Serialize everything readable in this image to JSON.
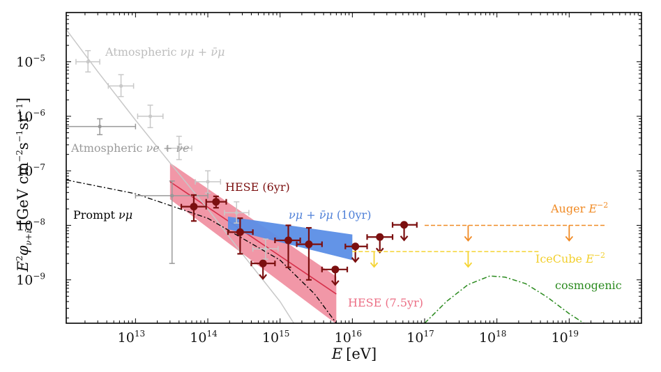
{
  "chart_data": {
    "type": "scatter",
    "x_scale": "log",
    "y_scale": "log",
    "xlim": [
      1100000000000.0,
      1e+20
    ],
    "ylim": [
      1.6e-10,
      8e-05
    ],
    "xlabel": {
      "var": "E",
      "unit": "[eV]"
    },
    "ylabel": {
      "main": "E",
      "sup": "2",
      "phi": "φ",
      "sub": "ν+ν̄",
      "unit": "[GeV cm",
      "e1": "−2",
      "s": "s",
      "e2": "−1",
      "sr": "sr",
      "e3": "−1",
      "close": "]"
    },
    "x_ticks": [
      {
        "value": 10000000000000.0,
        "base": "10",
        "exp": "13"
      },
      {
        "value": 100000000000000.0,
        "base": "10",
        "exp": "14"
      },
      {
        "value": 1000000000000000.0,
        "base": "10",
        "exp": "15"
      },
      {
        "value": 1e+16,
        "base": "10",
        "exp": "16"
      },
      {
        "value": 1e+17,
        "base": "10",
        "exp": "17"
      },
      {
        "value": 1e+18,
        "base": "10",
        "exp": "18"
      },
      {
        "value": 1e+19,
        "base": "10",
        "exp": "19"
      }
    ],
    "y_ticks": [
      {
        "value": 1e-09,
        "base": "10",
        "exp": "−9"
      },
      {
        "value": 1e-08,
        "base": "10",
        "exp": "−8"
      },
      {
        "value": 1e-07,
        "base": "10",
        "exp": "−7"
      },
      {
        "value": 1e-06,
        "base": "10",
        "exp": "−6"
      },
      {
        "value": 1e-05,
        "base": "10",
        "exp": "−5"
      }
    ],
    "colors": {
      "atm_mu": "#c8c8c8",
      "atm_e": "#999999",
      "hese6": "#7b0f0f",
      "hese75": "#ec6f85",
      "hese75_line": "#d6304a",
      "numu": "#5b8ee6",
      "prompt": "#000000",
      "auger": "#f08a24",
      "icecube": "#f5d432",
      "cosmogenic": "#2a8a1e"
    },
    "labels": {
      "atm_mu": {
        "text": "Atmospheric ",
        "math": "νμ + ν̄μ"
      },
      "atm_e": {
        "text": "Atmospheric ",
        "math": "νe + ν̄e"
      },
      "hese6": "HESE (6yr)",
      "numu": {
        "math": "νμ + ν̄μ",
        "text": " (10yr)"
      },
      "prompt": {
        "text": "Prompt ",
        "math": "νμ"
      },
      "auger": {
        "text": "Auger ",
        "math": "E",
        "exp": "−2"
      },
      "icecube": {
        "text": "IceCube ",
        "math": "E",
        "exp": "−2"
      },
      "cosmogenic": "cosmogenic",
      "hese75": "HESE (7.5yr)"
    },
    "series": [
      {
        "name": "Atmospheric νμ + ν̄μ (points)",
        "points": [
          {
            "x": 2200000000000.0,
            "y": 1e-05,
            "xlo": 1500000000000.0,
            "xhi": 3200000000000.0,
            "ylo": 6.5e-06,
            "yhi": 1.6e-05
          },
          {
            "x": 6300000000000.0,
            "y": 3.6e-06,
            "xlo": 4200000000000.0,
            "xhi": 9400000000000.0,
            "ylo": 2.3e-06,
            "yhi": 5.8e-06
          },
          {
            "x": 16000000000000.0,
            "y": 1e-06,
            "xlo": 10700000000000.0,
            "xhi": 24000000000000.0,
            "ylo": 6.2e-07,
            "yhi": 1.6e-06
          },
          {
            "x": 40000000000000.0,
            "y": 2.6e-07,
            "xlo": 27000000000000.0,
            "xhi": 60000000000000.0,
            "ylo": 1.6e-07,
            "yhi": 4.3e-07
          },
          {
            "x": 100000000000000.0,
            "y": 6.3e-08,
            "xlo": 67000000000000.0,
            "xhi": 150000000000000.0,
            "ylo": 3.9e-08,
            "yhi": 1e-07
          },
          {
            "x": 250000000000000.0,
            "y": 1.7e-08,
            "xlo": 170000000000000.0,
            "xhi": 370000000000000.0,
            "ylo": 1.1e-08,
            "yhi": 2.7e-08
          },
          {
            "x": 630000000000000.0,
            "y": 3.7e-09,
            "xlo": 420000000000000.0,
            "xhi": 940000000000000.0,
            "ylo": 2.4e-09,
            "yhi": 5.6e-09
          }
        ]
      },
      {
        "name": "Atmospheric νe + ν̄e (points)",
        "points": [
          {
            "x": 3200000000000.0,
            "y": 6.5e-07,
            "xlo": 1100000000000.0,
            "xhi": 10000000000000.0,
            "ylo": 4.6e-07,
            "yhi": 9e-07
          },
          {
            "x": 32000000000000.0,
            "y": 3.5e-08,
            "xlo": 10000000000000.0,
            "xhi": 100000000000000.0,
            "ylo": 2e-09,
            "yhi": 6.5e-08
          }
        ]
      },
      {
        "name": "HESE (6yr)",
        "points": [
          {
            "x": 64000000000000.0,
            "y": 2.2e-08,
            "xlo": 43000000000000.0,
            "xhi": 95000000000000.0,
            "ylo": 1.2e-08,
            "yhi": 3.6e-08
          },
          {
            "x": 130000000000000.0,
            "y": 2.7e-08,
            "xlo": 95000000000000.0,
            "xhi": 180000000000000.0,
            "ylo": 2.1e-08,
            "yhi": 3.4e-08
          },
          {
            "x": 280000000000000.0,
            "y": 7.5e-09,
            "xlo": 190000000000000.0,
            "xhi": 420000000000000.0,
            "ylo": 3e-09,
            "yhi": 1.35e-08
          },
          {
            "x": 1300000000000000.0,
            "y": 5.3e-09,
            "xlo": 850000000000000.0,
            "xhi": 1900000000000000.0,
            "ylo": 1.7e-09,
            "yhi": 1e-08
          },
          {
            "x": 2500000000000000.0,
            "y": 4.5e-09,
            "xlo": 1700000000000000.0,
            "xhi": 3800000000000000.0,
            "ylo": 1e-09,
            "yhi": 9e-09
          },
          {
            "x": 580000000000000.0,
            "y": 2e-09,
            "xlo": 400000000000000.0,
            "xhi": 850000000000000.0,
            "upper": true
          },
          {
            "x": 5800000000000000.0,
            "y": 1.55e-09,
            "xlo": 3800000000000000.0,
            "xhi": 8500000000000000.0,
            "upper": true
          },
          {
            "x": 1.1e+16,
            "y": 4.1e-09,
            "xlo": 8000000000000000.0,
            "xhi": 1.6e+16,
            "upper": true
          },
          {
            "x": 2.4e+16,
            "y": 6.1e-09,
            "xlo": 1.6e+16,
            "xhi": 3.6e+16,
            "upper": true
          },
          {
            "x": 5.2e+16,
            "y": 1.02e-08,
            "xlo": 3.6e+16,
            "xhi": 7.8e+16,
            "upper": true
          }
        ]
      },
      {
        "name": "HESE (7.5yr) band",
        "band": {
          "x": [
            30000000000000.0,
            6000000000000000.0
          ],
          "upper": [
            1.4e-07,
            1.15e-09
          ],
          "lower": [
            3e-08,
            1.55e-10
          ],
          "line": [
            6.3e-08,
            5.5e-10
          ]
        }
      },
      {
        "name": "νμ + ν̄μ (10yr) band",
        "band": {
          "x": [
            190000000000000.0,
            1e+16
          ],
          "upper": [
            1.45e-08,
            6.8e-09
          ],
          "lower": [
            8.5e-09,
            2.3e-09
          ]
        }
      },
      {
        "name": "Atmospheric νμ model",
        "curve": [
          {
            "x": 1100000000000.0,
            "y": 3.9e-05
          },
          {
            "x": 3000000000000.0,
            "y": 6.6e-06
          },
          {
            "x": 10000000000000.0,
            "y": 8.5e-07
          },
          {
            "x": 30000000000000.0,
            "y": 1.4e-07
          },
          {
            "x": 100000000000000.0,
            "y": 2e-08
          },
          {
            "x": 300000000000000.0,
            "y": 3e-09
          },
          {
            "x": 1000000000000000.0,
            "y": 4e-10
          },
          {
            "x": 1550000000000000.0,
            "y": 1.6e-10
          }
        ]
      },
      {
        "name": "Prompt νμ",
        "curve": [
          {
            "x": 1100000000000.0,
            "y": 6.8e-08
          },
          {
            "x": 10000000000000.0,
            "y": 3.8e-08
          },
          {
            "x": 100000000000000.0,
            "y": 1.35e-08
          },
          {
            "x": 1000000000000000.0,
            "y": 2.3e-09
          },
          {
            "x": 3000000000000000.0,
            "y": 5.5e-10
          },
          {
            "x": 6000000000000000.0,
            "y": 1.6e-10
          }
        ]
      },
      {
        "name": "Auger E−2",
        "level": 1e-08,
        "x": [
          1e+17,
          3.3e+19
        ],
        "arrows": [
          4e+17,
          1e+19
        ]
      },
      {
        "name": "IceCube E−2",
        "level": 3.3e-09,
        "x": [
          1e+16,
          4e+18
        ],
        "arrows": [
          2e+16,
          4e+17
        ]
      },
      {
        "name": "cosmogenic",
        "curve": [
          {
            "x": 1e+17,
            "y": 1.6e-10
          },
          {
            "x": 2e+17,
            "y": 4e-10
          },
          {
            "x": 4e+17,
            "y": 8.2e-10
          },
          {
            "x": 8e+17,
            "y": 1.18e-09
          },
          {
            "x": 1.3e+18,
            "y": 1.12e-09
          },
          {
            "x": 2.5e+18,
            "y": 8.5e-10
          },
          {
            "x": 5e+18,
            "y": 4.8e-10
          },
          {
            "x": 1e+19,
            "y": 2.4e-10
          },
          {
            "x": 1.6e+19,
            "y": 1.6e-10
          }
        ]
      }
    ]
  }
}
